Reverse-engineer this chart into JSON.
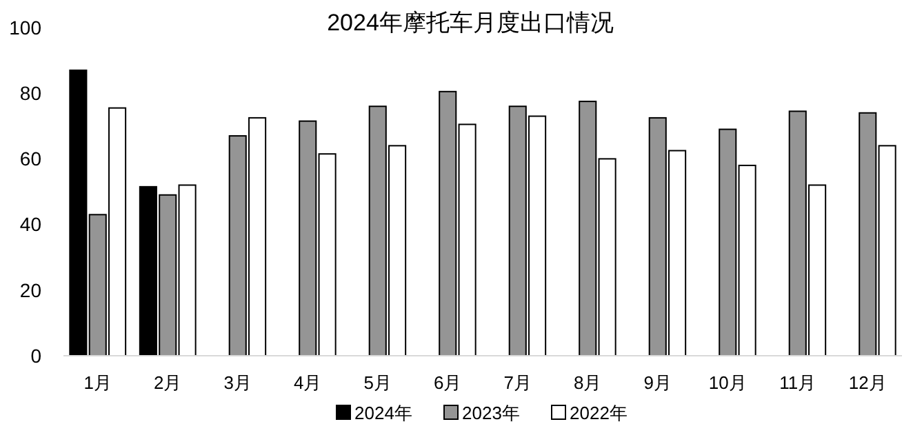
{
  "chart_data": {
    "type": "bar",
    "title": "2024年摩托车月度出口情况",
    "categories": [
      "1月",
      "2月",
      "3月",
      "4月",
      "5月",
      "6月",
      "7月",
      "8月",
      "9月",
      "10月",
      "11月",
      "12月"
    ],
    "series": [
      {
        "name": "2024年",
        "color": "#000000",
        "values": [
          87,
          51.5,
          null,
          null,
          null,
          null,
          null,
          null,
          null,
          null,
          null,
          null
        ]
      },
      {
        "name": "2023年",
        "color": "#959595",
        "values": [
          43,
          49,
          67,
          71.5,
          76,
          80.5,
          76,
          77.5,
          72.5,
          69,
          74.5,
          74
        ]
      },
      {
        "name": "2022年",
        "color": "#ffffff",
        "values": [
          75.5,
          52,
          72.5,
          61.5,
          64,
          70.5,
          73,
          60,
          62.5,
          58,
          52,
          64
        ]
      }
    ],
    "ylim": [
      0,
      100
    ],
    "yticks": [
      0,
      20,
      40,
      60,
      80,
      100
    ],
    "grid": false,
    "legend": "bottom"
  }
}
